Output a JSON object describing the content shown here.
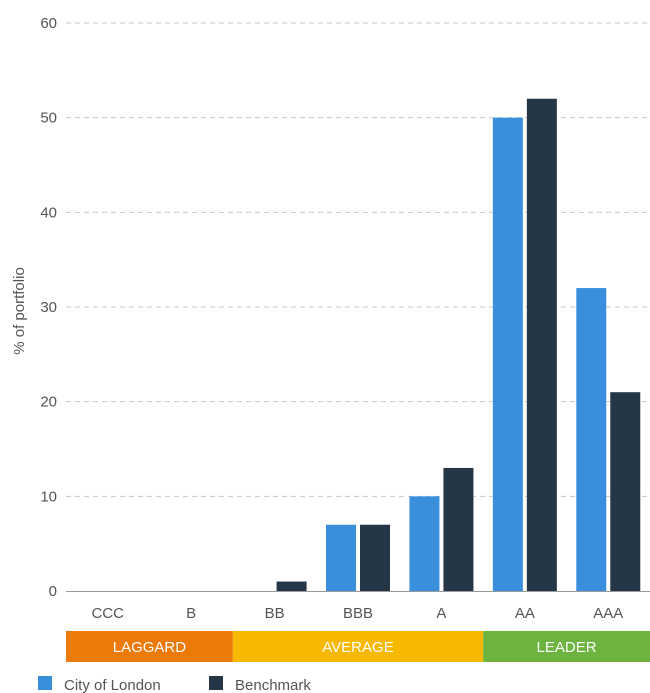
{
  "chart_data": {
    "type": "bar",
    "title": "",
    "xlabel": "",
    "ylabel": "% of portfolio",
    "ylim": [
      0,
      60
    ],
    "yticks": [
      0,
      10,
      20,
      30,
      40,
      50,
      60
    ],
    "grid": true,
    "categories": [
      "CCC",
      "B",
      "BB",
      "BBB",
      "A",
      "AA",
      "AAA"
    ],
    "series": [
      {
        "name": "City of London",
        "color": "#3a8fdc",
        "values": [
          0,
          0,
          0,
          7,
          10,
          50,
          32
        ]
      },
      {
        "name": "Benchmark",
        "color": "#253746",
        "values": [
          0,
          0,
          1,
          7,
          13,
          52,
          21
        ]
      }
    ],
    "bands": [
      {
        "label": "LAGGARD",
        "color": "#ec7a08",
        "categories": [
          "CCC",
          "B"
        ]
      },
      {
        "label": "AVERAGE",
        "color": "#f6b800",
        "categories": [
          "BB",
          "BBB",
          "A"
        ]
      },
      {
        "label": "LEADER",
        "color": "#6db33f",
        "categories": [
          "AA",
          "AAA"
        ]
      }
    ],
    "legend_position": "bottom-left"
  }
}
